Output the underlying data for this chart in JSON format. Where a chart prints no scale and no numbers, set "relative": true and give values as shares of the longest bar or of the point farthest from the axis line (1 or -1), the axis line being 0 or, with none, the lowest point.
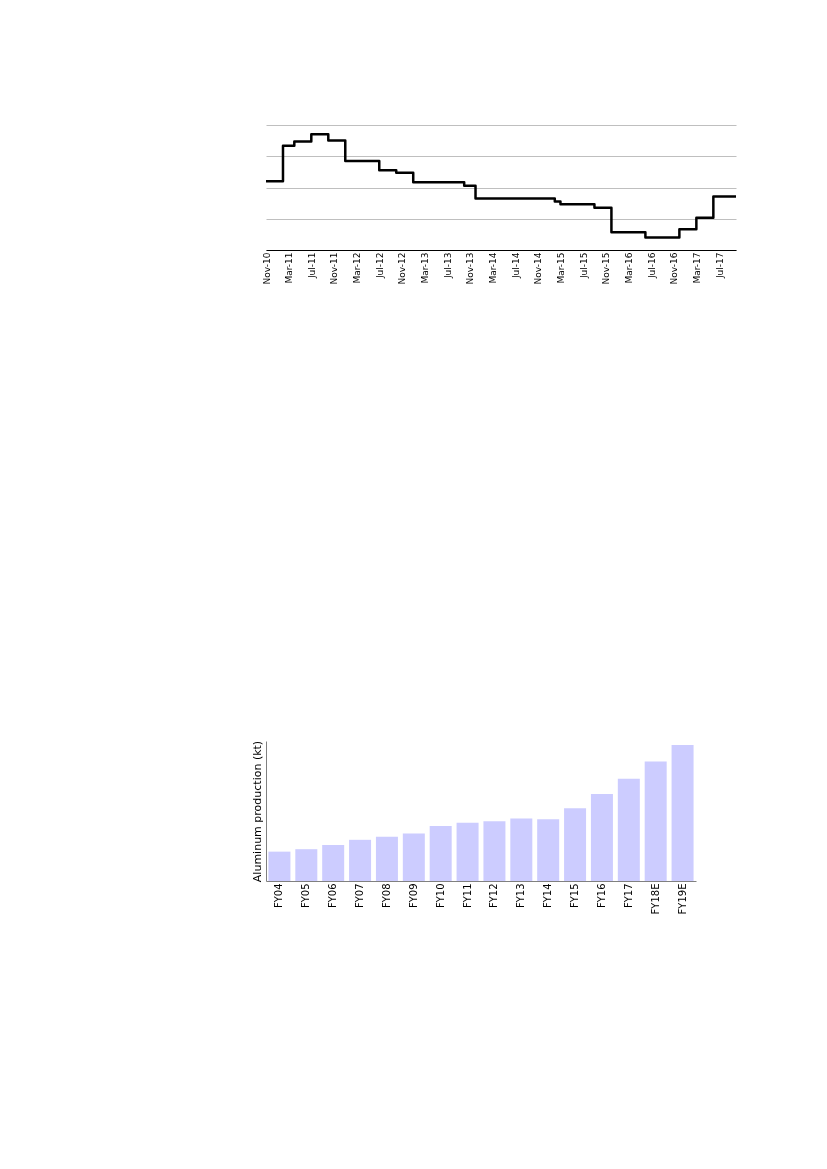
{
  "chart_data": [
    {
      "type": "step",
      "relative": true,
      "grid": "y",
      "categories": [
        "Nov-10",
        null,
        null,
        null,
        "Mar-11",
        null,
        null,
        null,
        "Jul-11",
        null,
        null,
        null,
        "Nov-11",
        null,
        null,
        null,
        "Mar-12",
        null,
        null,
        null,
        "Jul-12",
        null,
        null,
        null,
        "Nov-12",
        null,
        null,
        null,
        "Mar-13",
        null,
        null,
        null,
        "Jul-13",
        null,
        null,
        null,
        "Nov-13",
        null,
        null,
        null,
        "Mar-14",
        null,
        null,
        null,
        "Jul-14",
        null,
        null,
        null,
        "Nov-14",
        null,
        null,
        null,
        "Mar-15",
        null,
        null,
        null,
        "Jul-15",
        null,
        null,
        null,
        "Nov-15",
        null,
        null,
        null,
        "Mar-16",
        null,
        null,
        null,
        "Jul-16",
        null,
        null,
        null,
        "Nov-16",
        null,
        null,
        null,
        "Mar-17",
        null,
        null,
        null,
        "Jul-17",
        null,
        null,
        null
      ],
      "series": [
        {
          "color": "#000000",
          "values": [
            0.595,
            0.595,
            0.595,
            0.9,
            0.9,
            0.937,
            0.937,
            0.937,
            1.0,
            1.0,
            1.0,
            0.946,
            0.946,
            0.946,
            0.769,
            0.769,
            0.769,
            0.769,
            0.769,
            0.769,
            0.688,
            0.688,
            0.688,
            0.667,
            0.667,
            0.667,
            0.586,
            0.586,
            0.586,
            0.586,
            0.586,
            0.586,
            0.586,
            0.586,
            0.586,
            0.556,
            0.556,
            0.444,
            0.444,
            0.444,
            0.444,
            0.444,
            0.444,
            0.444,
            0.444,
            0.444,
            0.444,
            0.444,
            0.444,
            0.444,
            0.444,
            0.42,
            0.396,
            0.396,
            0.396,
            0.396,
            0.396,
            0.396,
            0.366,
            0.366,
            0.366,
            0.153,
            0.153,
            0.153,
            0.153,
            0.153,
            0.153,
            0.108,
            0.108,
            0.108,
            0.108,
            0.108,
            0.108,
            0.18,
            0.18,
            0.18,
            0.279,
            0.279,
            0.279,
            0.462,
            0.462,
            0.462,
            0.462,
            0.462
          ]
        }
      ]
    },
    {
      "type": "bar",
      "relative": true,
      "grid": false,
      "ylabel": "Aluminum production (kt)",
      "categories": [
        "FY04",
        "FY05",
        "FY06",
        "FY07",
        "FY08",
        "FY09",
        "FY10",
        "FY11",
        "FY12",
        "FY13",
        "FY14",
        "FY15",
        "FY16",
        "FY17",
        "FY18E",
        "FY19E"
      ],
      "series": [
        {
          "color": "#ccccff",
          "values": [
            0.216,
            0.234,
            0.265,
            0.303,
            0.326,
            0.35,
            0.404,
            0.429,
            0.44,
            0.46,
            0.455,
            0.535,
            0.64,
            0.753,
            0.879,
            1.0
          ]
        }
      ]
    }
  ]
}
